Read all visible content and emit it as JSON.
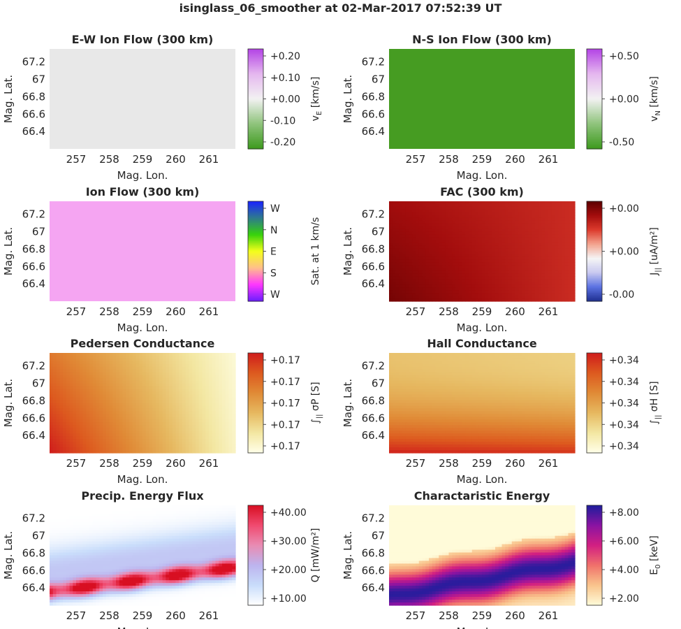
{
  "suptitle": "isinglass_06_smoother at 02-Mar-2017 07:52:39 UT",
  "chart_data": [
    {
      "type": "heatmap",
      "title": "E-W Ion Flow (300 km)",
      "xlabel": "Mag. Lon.",
      "ylabel": "Mag. Lat.",
      "x_ticks": [
        "257",
        "258",
        "259",
        "260",
        "261"
      ],
      "y_ticks": [
        "67.2",
        "67",
        "66.8",
        "66.6",
        "66.4"
      ],
      "xlim": [
        256.2,
        261.8
      ],
      "ylim": [
        66.2,
        67.35
      ],
      "colorbar": {
        "label": "v_E [km/s]",
        "label_main": "v",
        "label_sub": "E",
        "label_rest": " [km/s]",
        "ticks": [
          "+0.20",
          "+0.10",
          "+0.00",
          "-0.10",
          "-0.20"
        ],
        "range": [
          -0.25,
          0.25
        ],
        "colors": [
          "#3d9a1e",
          "#8fc37c",
          "#f2f2f2",
          "#e5b7ef",
          "#b343e5"
        ]
      },
      "field": "uniform",
      "uniform_color": "#e8e8e8"
    },
    {
      "type": "heatmap",
      "title": "N-S Ion Flow (300 km)",
      "xlabel": "Mag. Lon.",
      "ylabel": "Mag. Lat.",
      "x_ticks": [
        "257",
        "258",
        "259",
        "260",
        "261"
      ],
      "y_ticks": [
        "67.2",
        "67",
        "66.8",
        "66.6",
        "66.4"
      ],
      "xlim": [
        256.2,
        261.8
      ],
      "ylim": [
        66.2,
        67.35
      ],
      "colorbar": {
        "label": "v_N [km/s]",
        "label_main": "v",
        "label_sub": "N",
        "label_rest": " [km/s]",
        "ticks": [
          "+0.50",
          "+0.00",
          "-0.50"
        ],
        "range": [
          -0.55,
          0.55
        ],
        "colors": [
          "#3d9a1e",
          "#8fc37c",
          "#f2f2f2",
          "#e5b7ef",
          "#b343e5"
        ]
      },
      "field": "uniform",
      "uniform_color": "#469c22"
    },
    {
      "type": "heatmap",
      "title": "Ion Flow (300 km)",
      "xlabel": "Mag. Lon.",
      "ylabel": "Mag. Lat.",
      "x_ticks": [
        "257",
        "258",
        "259",
        "260",
        "261"
      ],
      "y_ticks": [
        "67.2",
        "67",
        "66.8",
        "66.6",
        "66.4"
      ],
      "xlim": [
        256.2,
        261.8
      ],
      "ylim": [
        66.2,
        67.35
      ],
      "colorbar": {
        "label": "Sat. at 1 km/s",
        "label_main": "Sat. at 1 km/s",
        "label_sub": "",
        "label_rest": "",
        "ticks": [
          "W",
          "N",
          "E",
          "S",
          "W"
        ],
        "range": [
          0,
          1
        ],
        "colors": [
          "#6a1dff",
          "#ff36ff",
          "#ffc08a",
          "#f4ff1a",
          "#36d20b",
          "#2e7a8e",
          "#1a22ff"
        ]
      },
      "field": "uniform",
      "uniform_color": "#f5a5f2"
    },
    {
      "type": "heatmap",
      "title": "FAC (300 km)",
      "xlabel": "Mag. Lon.",
      "ylabel": "Mag. Lat.",
      "x_ticks": [
        "257",
        "258",
        "259",
        "260",
        "261"
      ],
      "y_ticks": [
        "67.2",
        "67",
        "66.8",
        "66.6",
        "66.4"
      ],
      "xlim": [
        256.2,
        261.8
      ],
      "ylim": [
        66.2,
        67.35
      ],
      "colorbar": {
        "label": "J_|| [uA/m^2]",
        "label_main": "J",
        "label_sub": "||",
        "label_rest": " [uA/m²]",
        "ticks": [
          "+0.00",
          "+0.00",
          "-0.00"
        ],
        "range": [
          0,
          1
        ],
        "colors": [
          "#1f2f90",
          "#5b72e2",
          "#c9c9f0",
          "#f5f5f5",
          "#f3a38e",
          "#dc3a2c",
          "#a30d0d",
          "#5c0000"
        ]
      },
      "field": "fac"
    },
    {
      "type": "heatmap",
      "title": "Pedersen Conductance",
      "xlabel": "Mag. Lon.",
      "ylabel": "Mag. Lat.",
      "x_ticks": [
        "257",
        "258",
        "259",
        "260",
        "261"
      ],
      "y_ticks": [
        "67.2",
        "67",
        "66.8",
        "66.6",
        "66.4"
      ],
      "xlim": [
        256.2,
        261.8
      ],
      "ylim": [
        66.2,
        67.35
      ],
      "colorbar": {
        "label": "∫|| σP [S]",
        "label_main": "∫",
        "label_sub": "||",
        "label_rest": " σP [S]",
        "ticks": [
          "+0.17",
          "+0.17",
          "+0.17",
          "+0.17",
          "+0.17"
        ],
        "range": [
          0,
          1
        ],
        "colors": [
          "#ffffe8",
          "#f3e7a2",
          "#e6b860",
          "#e08a36",
          "#dd5a1f",
          "#cf1c1c"
        ]
      },
      "field": "pedersen"
    },
    {
      "type": "heatmap",
      "title": "Hall Conductance",
      "xlabel": "Mag. Lon.",
      "ylabel": "Mag. Lat.",
      "x_ticks": [
        "257",
        "258",
        "259",
        "260",
        "261"
      ],
      "y_ticks": [
        "67.2",
        "67",
        "66.8",
        "66.6",
        "66.4"
      ],
      "xlim": [
        256.2,
        261.8
      ],
      "ylim": [
        66.2,
        67.35
      ],
      "colorbar": {
        "label": "∫|| σH [S]",
        "label_main": "∫",
        "label_sub": "||",
        "label_rest": " σH [S]",
        "ticks": [
          "+0.34",
          "+0.34",
          "+0.34",
          "+0.34",
          "+0.34"
        ],
        "range": [
          0,
          1
        ],
        "colors": [
          "#ffffe8",
          "#f3e7a2",
          "#e6b860",
          "#e08a36",
          "#dd5a1f",
          "#cf1c1c"
        ]
      },
      "field": "hall"
    },
    {
      "type": "heatmap",
      "title": "Precip. Energy Flux",
      "xlabel": "Mag. Lon.",
      "ylabel": "Mag. Lat.",
      "x_ticks": [
        "257",
        "258",
        "259",
        "260",
        "261"
      ],
      "y_ticks": [
        "67.2",
        "67",
        "66.8",
        "66.6",
        "66.4"
      ],
      "xlim": [
        256.2,
        261.8
      ],
      "ylim": [
        66.2,
        67.35
      ],
      "colorbar": {
        "label": "Q [mW/m^2]",
        "label_main": "Q [mW/m²]",
        "label_sub": "",
        "label_rest": "",
        "ticks": [
          "+40.00",
          "+30.00",
          "+20.00",
          "+10.00"
        ],
        "range": [
          2,
          48
        ],
        "colors": [
          "#ffffff",
          "#c9ddfb",
          "#bcb4ee",
          "#e98cb3",
          "#f04a6f",
          "#d80f22"
        ]
      },
      "field": "flux"
    },
    {
      "type": "heatmap",
      "title": "Charactaristic Energy",
      "xlabel": "Mag. Lon.",
      "ylabel": "Mag. Lat.",
      "x_ticks": [
        "257",
        "258",
        "259",
        "260",
        "261"
      ],
      "y_ticks": [
        "67.2",
        "67",
        "66.8",
        "66.6",
        "66.4"
      ],
      "xlim": [
        256.2,
        261.8
      ],
      "ylim": [
        66.2,
        67.35
      ],
      "colorbar": {
        "label": "E_0 [keV]",
        "label_main": "E",
        "label_sub": "0",
        "label_rest": " [keV]",
        "ticks": [
          "+8.00",
          "+6.00",
          "+4.00",
          "+2.00"
        ],
        "range": [
          1,
          9.4
        ],
        "colors": [
          "#fffbd9",
          "#f9c48c",
          "#f0706b",
          "#d21f82",
          "#8a13a2",
          "#1d1d9c"
        ]
      },
      "field": "energy"
    }
  ]
}
